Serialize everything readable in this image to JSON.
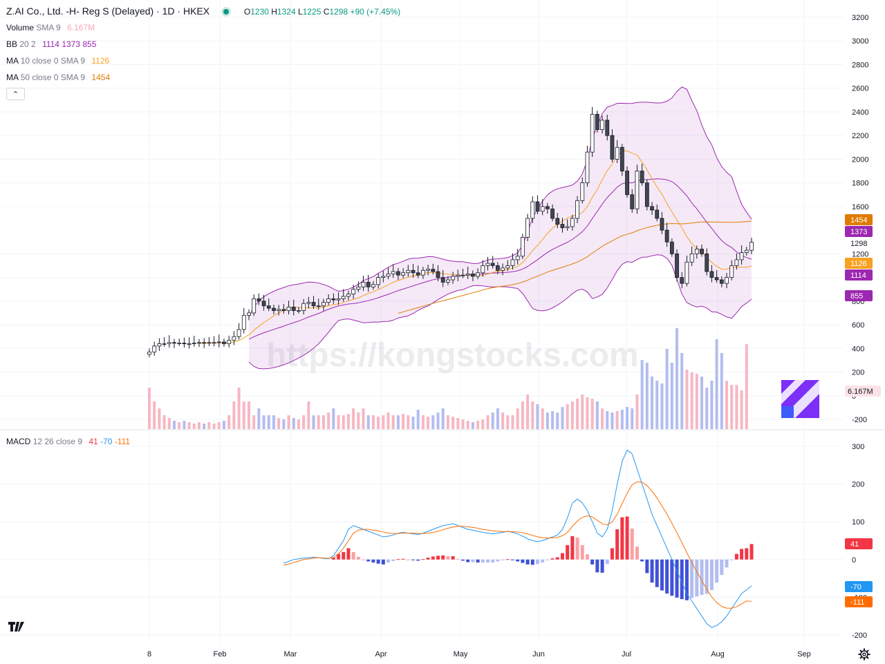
{
  "header": {
    "title": "Z.AI Co., Ltd. -H- Reg S (Delayed) · 1D · HKEX",
    "status_color": "#089981",
    "ohlc": [
      {
        "k": "O",
        "v": "1230"
      },
      {
        "k": "H",
        "v": "1324"
      },
      {
        "k": "L",
        "v": "1225"
      },
      {
        "k": "C",
        "v": "1298"
      },
      {
        "k": "",
        "v": "+90 (+7.45%)"
      }
    ]
  },
  "legends": {
    "volume": {
      "label": "Volume",
      "params": "SMA 9",
      "value": "6.167M",
      "color": "#f7a8b8"
    },
    "bb": {
      "label": "BB",
      "params": "20 2",
      "values": [
        "1114",
        "1373",
        "855"
      ],
      "color": "#9c27b0"
    },
    "ma10": {
      "label": "MA",
      "params": "10 close 0 SMA 9",
      "value": "1126",
      "color": "#f7a021"
    },
    "ma50": {
      "label": "MA",
      "params": "50 close 0 SMA 9",
      "value": "1454",
      "color": "#e07b00"
    },
    "macd": {
      "label": "MACD",
      "params": "12 26 close 9",
      "values": [
        "41",
        "-70",
        "-111"
      ],
      "colors": [
        "#f23645",
        "#2196f3",
        "#ff6d00"
      ]
    }
  },
  "collapse_icon": "chevron-up-icon",
  "watermark": "https://kongstocks.com",
  "logo_text": "17",
  "settings_icon": "gear-icon",
  "chart_data": {
    "type": "candlestick",
    "x_ticks": [
      "8",
      "Feb",
      "Mar",
      "Apr",
      "May",
      "Jun",
      "Jul",
      "Aug",
      "Sep"
    ],
    "price_axis": {
      "ticks": [
        3200,
        3000,
        2800,
        2600,
        2400,
        2200,
        2000,
        1800,
        1600,
        1200,
        1000,
        800,
        600,
        400,
        200,
        0,
        -200
      ],
      "range": [
        -200,
        3200
      ]
    },
    "macd_axis": {
      "ticks": [
        300,
        200,
        100,
        0,
        -100,
        -200
      ],
      "range": [
        -200,
        300
      ]
    },
    "last_values": {
      "close": "1298",
      "bb_upper": "1373",
      "bb_mid": "1114",
      "bb_lower": "855",
      "ma10": "1126",
      "ma50": "1454",
      "volume": "6.167M",
      "macd_hist": "41",
      "macd": "-70",
      "signal": "-111"
    },
    "badge_colors": {
      "ma50": "#e07b00",
      "bb": "#9c27b0",
      "ma10": "#f7a021",
      "volume": "#fbe2e6",
      "hist": "#f23645",
      "macd": "#2196f3",
      "signal": "#ff6d00"
    },
    "close_series": [
      370,
      420,
      440,
      440,
      450,
      445,
      445,
      440,
      440,
      445,
      450,
      445,
      450,
      450,
      455,
      440,
      470,
      500,
      560,
      680,
      700,
      820,
      800,
      760,
      740,
      720,
      730,
      720,
      750,
      720,
      720,
      780,
      790,
      760,
      760,
      790,
      820,
      810,
      820,
      840,
      860,
      900,
      920,
      960,
      920,
      940,
      1000,
      1010,
      1030,
      1050,
      1020,
      1040,
      1060,
      1040,
      1020,
      1060,
      1070,
      1050,
      1000,
      960,
      980,
      1010,
      1020,
      1020,
      1030,
      1010,
      1040,
      1100,
      1120,
      1100,
      1060,
      1080,
      1100,
      1150,
      1180,
      1340,
      1500,
      1640,
      1560,
      1600,
      1580,
      1500,
      1450,
      1420,
      1430,
      1500,
      1650,
      1800,
      2060,
      2380,
      2250,
      2330,
      2200,
      2000,
      2100,
      1900,
      1700,
      1580,
      1900,
      1800,
      1600,
      1570,
      1500,
      1400,
      1300,
      1200,
      1000,
      950,
      1130,
      1200,
      1240,
      1200,
      1050,
      1000,
      980,
      950,
      1000,
      1100,
      1150,
      1210,
      1230,
      1298
    ],
    "volume_series": [
      3,
      2,
      1.5,
      1,
      0.8,
      0.6,
      0.5,
      0.6,
      0.5,
      0.4,
      0.5,
      0.4,
      0.5,
      0.4,
      0.5,
      0.6,
      1,
      2,
      3,
      2,
      2,
      1,
      1.5,
      1,
      1,
      1,
      0.8,
      0.7,
      1,
      0.8,
      0.7,
      1,
      2,
      1,
      1,
      1,
      1.2,
      1.5,
      1,
      1,
      1.1,
      1.5,
      1.2,
      1.5,
      1,
      1,
      0.9,
      1,
      1.2,
      1,
      1,
      1.1,
      1,
      0.9,
      1.4,
      1,
      0.9,
      1,
      1.2,
      1.5,
      1,
      0.9,
      0.8,
      0.7,
      0.6,
      0.5,
      0.6,
      0.7,
      1,
      1.2,
      1.5,
      1.2,
      1,
      1,
      1.5,
      2,
      2.5,
      2,
      1.8,
      1.5,
      1.2,
      1.3,
      1.2,
      1.6,
      1.8,
      2,
      2.2,
      2.5,
      2.3,
      2.2,
      2,
      1.5,
      1.3,
      1.2,
      1.3,
      1.4,
      1.6,
      1.5,
      2.5,
      5,
      4.8,
      3.8,
      3.5,
      3.3,
      5.8,
      4.8,
      7.3,
      5.5,
      4.3,
      4.1,
      4,
      3.8,
      3,
      3.5,
      6.5,
      5.5,
      3.5,
      3.2,
      3.2,
      2.8,
      6.167
    ],
    "macd_series": [
      -10,
      -5,
      0,
      2,
      4,
      5,
      6,
      5,
      3,
      2,
      10,
      30,
      50,
      80,
      90,
      85,
      80,
      75,
      70,
      65,
      60,
      62,
      65,
      70,
      72,
      70,
      68,
      66,
      70,
      75,
      80,
      85,
      90,
      92,
      95,
      90,
      85,
      80,
      78,
      75,
      72,
      70,
      68,
      70,
      72,
      75,
      72,
      68,
      62,
      55,
      50,
      48,
      50,
      55,
      60,
      65,
      80,
      110,
      150,
      160,
      150,
      130,
      100,
      70,
      60,
      80,
      130,
      200,
      260,
      290,
      280,
      240,
      200,
      160,
      120,
      90,
      60,
      30,
      0,
      -30,
      -60,
      -90,
      -110,
      -130,
      -150,
      -170,
      -180,
      -175,
      -165,
      -150,
      -130,
      -110,
      -90,
      -80,
      -70
    ],
    "signal_series": [
      -15,
      -12,
      -8,
      -4,
      0,
      2,
      4,
      5,
      4,
      3,
      5,
      15,
      30,
      50,
      70,
      78,
      80,
      80,
      78,
      76,
      73,
      70,
      69,
      69,
      70,
      70,
      70,
      69,
      69,
      70,
      72,
      75,
      79,
      83,
      86,
      88,
      88,
      87,
      85,
      83,
      80,
      78,
      76,
      75,
      74,
      74,
      74,
      73,
      71,
      68,
      64,
      60,
      58,
      57,
      57,
      59,
      63,
      72,
      88,
      102,
      112,
      116,
      113,
      104,
      95,
      92,
      100,
      120,
      148,
      176,
      198,
      206,
      205,
      196,
      181,
      163,
      142,
      120,
      96,
      71,
      45,
      18,
      -8,
      -32,
      -56,
      -79,
      -99,
      -114,
      -124,
      -129,
      -129,
      -125,
      -118,
      -110,
      -111
    ]
  }
}
